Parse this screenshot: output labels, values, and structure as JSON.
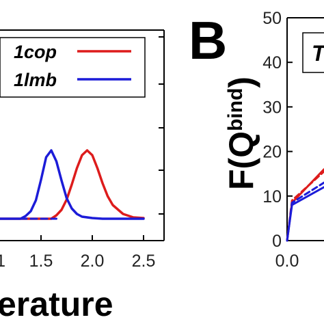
{
  "panel_b_letter": "B",
  "chart_data": [
    {
      "type": "line",
      "title": "",
      "xlabel": "erature",
      "ylabel": "",
      "xlim": [
        1.1,
        2.7
      ],
      "x_ticks": [
        "1.5",
        "2.0",
        "2.5"
      ],
      "x_ticks_partial": [
        "1"
      ],
      "legend": {
        "placement": "top-right",
        "entries": [
          "1cop",
          "1lmb"
        ]
      },
      "colors": {
        "1cop": "#dd1c1c",
        "1lmb": "#1c1cd8"
      },
      "series": [
        {
          "name": "1cop",
          "x": [
            1.1,
            1.6,
            1.65,
            1.7,
            1.75,
            1.8,
            1.85,
            1.9,
            1.95,
            2.0,
            2.05,
            2.1,
            2.15,
            2.2,
            2.3,
            2.4,
            2.5
          ],
          "y": [
            0.0,
            0.0,
            0.05,
            0.13,
            0.28,
            0.5,
            0.74,
            0.93,
            1.0,
            0.93,
            0.74,
            0.52,
            0.33,
            0.2,
            0.07,
            0.02,
            0.01
          ]
        },
        {
          "name": "1lmb",
          "x": [
            1.1,
            1.3,
            1.35,
            1.4,
            1.45,
            1.5,
            1.55,
            1.6,
            1.65,
            1.7,
            1.75,
            1.8,
            1.85,
            1.9,
            2.0,
            2.1,
            2.5
          ],
          "y": [
            0.0,
            0.0,
            0.04,
            0.11,
            0.27,
            0.57,
            0.9,
            1.0,
            0.84,
            0.56,
            0.3,
            0.15,
            0.07,
            0.03,
            0.01,
            0.0,
            0.0
          ]
        },
        {
          "name": "",
          "dashed": true,
          "x": [
            1.1,
            1.65
          ],
          "y": [
            0.0,
            0.0
          ]
        }
      ]
    },
    {
      "type": "line",
      "title": "",
      "xlabel": "",
      "ylabel": "F(Q",
      "ylabel_superscript": "bind",
      "ylabel_close": ")",
      "ylim": [
        0,
        50
      ],
      "y_ticks": [
        "0",
        "10",
        "20",
        "30",
        "40",
        "50"
      ],
      "x_ticks": [
        "0.0"
      ],
      "legend": {
        "placement": "top",
        "partial_entry": "T"
      },
      "series": [
        {
          "name": "",
          "color": "#dd1c1c",
          "x": [
            0.0,
            0.04,
            0.3
          ],
          "y": [
            0,
            8.5,
            16
          ]
        },
        {
          "name": "",
          "color": "#dd1c1c",
          "dashed": true,
          "x": [
            0.0,
            0.04,
            0.3
          ],
          "y": [
            0,
            9,
            15.5
          ]
        },
        {
          "name": "",
          "color": "#1c1cd8",
          "x": [
            0.0,
            0.04,
            0.3
          ],
          "y": [
            0,
            8,
            12
          ]
        },
        {
          "name": "",
          "color": "#1c1cd8",
          "dashed": true,
          "x": [
            0.0,
            0.04,
            0.3
          ],
          "y": [
            0,
            8.5,
            13
          ]
        }
      ]
    }
  ]
}
